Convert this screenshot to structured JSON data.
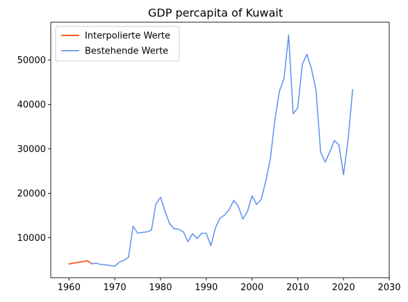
{
  "chart_data": {
    "type": "line",
    "title": "GDP percapita of Kuwait",
    "xlabel": "",
    "ylabel": "",
    "xlim": [
      1956,
      2030
    ],
    "ylim": [
      1000,
      58500
    ],
    "xticks": [
      1960,
      1970,
      1980,
      1990,
      2000,
      2010,
      2020,
      2030
    ],
    "yticks": [
      10000,
      20000,
      30000,
      40000,
      50000
    ],
    "grid": false,
    "legend_position": "top-left",
    "series": [
      {
        "name": "Interpolierte Werte",
        "color": "#ff4500",
        "x": [
          1960,
          1961,
          1962,
          1963,
          1964,
          1965
        ],
        "y": [
          4100,
          4280,
          4450,
          4620,
          4820,
          4150
        ]
      },
      {
        "name": "Bestehende Werte",
        "color": "#6495ed",
        "x": [
          1965,
          1966,
          1967,
          1968,
          1969,
          1970,
          1971,
          1972,
          1973,
          1974,
          1975,
          1976,
          1977,
          1978,
          1979,
          1980,
          1981,
          1982,
          1983,
          1984,
          1985,
          1986,
          1987,
          1988,
          1989,
          1990,
          1991,
          1992,
          1993,
          1994,
          1995,
          1996,
          1997,
          1998,
          1999,
          2000,
          2001,
          2002,
          2003,
          2004,
          2005,
          2006,
          2007,
          2008,
          2009,
          2010,
          2011,
          2012,
          2013,
          2014,
          2015,
          2016,
          2017,
          2018,
          2019,
          2020,
          2021,
          2022
        ],
        "y": [
          4150,
          4250,
          3950,
          3900,
          3750,
          3600,
          4500,
          4900,
          5600,
          12600,
          11000,
          11200,
          11300,
          11700,
          17600,
          19100,
          15900,
          13100,
          12000,
          11900,
          11300,
          9100,
          10900,
          9800,
          11000,
          11000,
          8200,
          12200,
          14400,
          15100,
          16300,
          18400,
          17100,
          14200,
          15900,
          19400,
          17500,
          18600,
          22700,
          27700,
          36500,
          43000,
          45800,
          55600,
          37900,
          39200,
          49000,
          51300,
          48000,
          43200,
          29300,
          27000,
          29300,
          31900,
          30900,
          24200,
          32000,
          43300
        ]
      }
    ]
  }
}
